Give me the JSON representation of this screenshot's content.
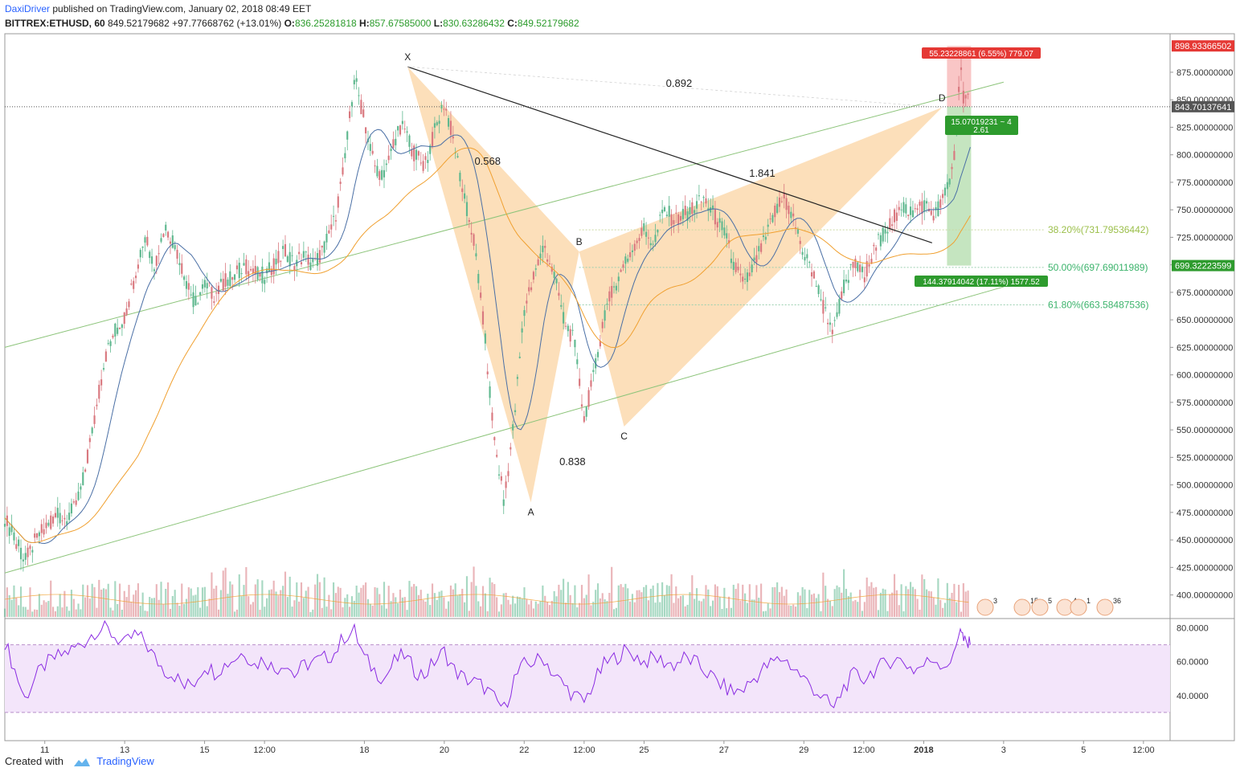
{
  "header": {
    "author": "DaxiDriver",
    "published_text": "published on TradingView.com, January 02, 2018 08:49 EET",
    "symbol": "BITTREX:ETHUSD, 60",
    "last": "849.52179682",
    "change": "+97.77668762 (+13.01%)",
    "open_label": "O:",
    "open": "836.25281818",
    "high_label": "H:",
    "high": "857.67585000",
    "low_label": "L:",
    "low": "830.63286432",
    "close_label": "C:",
    "close": "849.52179682"
  },
  "footer": {
    "created_with": "Created with",
    "brand": "TradingView"
  },
  "colors": {
    "up": "#5fb88f",
    "down": "#d9787f",
    "ma_fast": "#4a6fa5",
    "ma_slow": "#f0a030",
    "channel": "#8cc47a",
    "pattern_fill": "#fbd9ae",
    "rsi": "#8a2be2",
    "rsi_band": "#f3e5fa"
  },
  "chart_data": [
    {
      "type": "candlestick",
      "title": "BITTREX:ETHUSD, 60",
      "ylim": [
        380,
        910
      ],
      "y_ticks": [
        "875.00000000",
        "850.00000000",
        "825.00000000",
        "800.00000000",
        "775.00000000",
        "750.00000000",
        "725.00000000",
        "700.00000000",
        "675.00000000",
        "650.00000000",
        "625.00000000",
        "600.00000000",
        "575.00000000",
        "550.00000000",
        "525.00000000",
        "500.00000000",
        "475.00000000",
        "450.00000000",
        "425.00000000",
        "400.00000000"
      ],
      "y_tick_values": [
        875,
        850,
        825,
        800,
        775,
        750,
        725,
        700,
        675,
        650,
        625,
        600,
        575,
        550,
        525,
        500,
        475,
        450,
        425,
        400
      ],
      "x_ticks": [
        "11",
        "13",
        "15",
        "12:00",
        "18",
        "20",
        "22",
        "12:00",
        "25",
        "27",
        "29",
        "12:00",
        "2018",
        "3",
        "5",
        "12:00"
      ],
      "x_tick_hours": [
        24,
        72,
        120,
        156,
        216,
        264,
        312,
        348,
        384,
        432,
        480,
        516,
        552,
        600,
        648,
        684
      ],
      "price_points": [
        [
          0,
          470
        ],
        [
          6,
          450
        ],
        [
          12,
          430
        ],
        [
          18,
          448
        ],
        [
          24,
          462
        ],
        [
          30,
          472
        ],
        [
          36,
          470
        ],
        [
          42,
          478
        ],
        [
          48,
          510
        ],
        [
          54,
          560
        ],
        [
          60,
          615
        ],
        [
          66,
          640
        ],
        [
          72,
          652
        ],
        [
          78,
          690
        ],
        [
          84,
          728
        ],
        [
          90,
          700
        ],
        [
          96,
          735
        ],
        [
          102,
          720
        ],
        [
          108,
          690
        ],
        [
          114,
          665
        ],
        [
          120,
          682
        ],
        [
          126,
          672
        ],
        [
          132,
          685
        ],
        [
          138,
          690
        ],
        [
          144,
          700
        ],
        [
          150,
          692
        ],
        [
          156,
          690
        ],
        [
          162,
          700
        ],
        [
          168,
          712
        ],
        [
          174,
          702
        ],
        [
          180,
          708
        ],
        [
          186,
          700
        ],
        [
          192,
          716
        ],
        [
          198,
          740
        ],
        [
          204,
          790
        ],
        [
          210,
          872
        ],
        [
          216,
          830
        ],
        [
          222,
          790
        ],
        [
          228,
          780
        ],
        [
          234,
          815
        ],
        [
          240,
          825
        ],
        [
          246,
          800
        ],
        [
          252,
          790
        ],
        [
          258,
          820
        ],
        [
          264,
          848
        ],
        [
          270,
          810
        ],
        [
          276,
          760
        ],
        [
          282,
          720
        ],
        [
          288,
          640
        ],
        [
          294,
          540
        ],
        [
          300,
          484
        ],
        [
          306,
          560
        ],
        [
          312,
          660
        ],
        [
          318,
          690
        ],
        [
          324,
          718
        ],
        [
          330,
          690
        ],
        [
          336,
          650
        ],
        [
          342,
          630
        ],
        [
          348,
          560
        ],
        [
          354,
          600
        ],
        [
          360,
          655
        ],
        [
          366,
          680
        ],
        [
          372,
          700
        ],
        [
          378,
          718
        ],
        [
          384,
          732
        ],
        [
          390,
          720
        ],
        [
          396,
          752
        ],
        [
          402,
          740
        ],
        [
          408,
          745
        ],
        [
          414,
          752
        ],
        [
          420,
          760
        ],
        [
          426,
          745
        ],
        [
          432,
          730
        ],
        [
          438,
          700
        ],
        [
          444,
          680
        ],
        [
          450,
          700
        ],
        [
          456,
          720
        ],
        [
          462,
          745
        ],
        [
          468,
          760
        ],
        [
          474,
          740
        ],
        [
          480,
          710
        ],
        [
          486,
          690
        ],
        [
          492,
          660
        ],
        [
          498,
          640
        ],
        [
          504,
          680
        ],
        [
          510,
          700
        ],
        [
          516,
          690
        ],
        [
          522,
          712
        ],
        [
          528,
          730
        ],
        [
          534,
          742
        ],
        [
          540,
          752
        ],
        [
          546,
          748
        ],
        [
          552,
          755
        ],
        [
          558,
          745
        ],
        [
          564,
          760
        ],
        [
          570,
          790
        ],
        [
          574,
          880
        ],
        [
          576,
          852
        ],
        [
          578,
          855
        ],
        [
          580,
          849
        ]
      ],
      "series": [
        {
          "name": "ETHUSD",
          "values": "price_points"
        }
      ],
      "drawings": {
        "pattern_points": [
          {
            "label": "X",
            "hour": 242,
            "price": 880
          },
          {
            "label": "A",
            "hour": 316,
            "price": 484
          },
          {
            "label": "B",
            "hour": 345,
            "price": 712
          },
          {
            "label": "C",
            "hour": 372,
            "price": 553
          },
          {
            "label": "D",
            "hour": 563,
            "price": 843
          }
        ],
        "pattern_ratios": [
          {
            "text": "0.892",
            "hour": 405,
            "price": 862
          },
          {
            "text": "0.568",
            "hour": 290,
            "price": 791
          },
          {
            "text": "1.841",
            "hour": 455,
            "price": 780
          },
          {
            "text": "0.838",
            "hour": 341,
            "price": 518
          }
        ],
        "fib_levels": [
          {
            "text": "38.20%(731.79536442)",
            "price": 731.8
          },
          {
            "text": "50.00%(697.69011989)",
            "price": 697.69
          },
          {
            "text": "61.80%(663.58487536)",
            "price": 663.58
          }
        ],
        "price_tags": [
          {
            "text": "898.93366502",
            "price": 898.93,
            "color": "#e53935"
          },
          {
            "text": "843.70137641",
            "price": 843.7,
            "color": "#555555"
          },
          {
            "text": "699.32223599",
            "price": 699.32,
            "color": "#2e9b2e"
          }
        ],
        "position_labels": {
          "target": "55.23228861 (6.55%) 779.07",
          "entry": "15.07019231 ~ 4",
          "entry2": "2.61",
          "stop": "144.37914042 (17.11%) 1577.52"
        },
        "event_icons": [
          "3",
          "15",
          "5",
          "4",
          "1",
          "36"
        ]
      }
    },
    {
      "type": "line",
      "title": "RSI",
      "ylim": [
        20,
        85
      ],
      "y_ticks": [
        "80.0000",
        "60.0000",
        "40.0000"
      ],
      "y_tick_values": [
        80,
        60,
        40
      ],
      "bands": [
        30,
        70
      ],
      "values": [
        [
          0,
          72
        ],
        [
          6,
          55
        ],
        [
          12,
          38
        ],
        [
          18,
          50
        ],
        [
          24,
          58
        ],
        [
          30,
          62
        ],
        [
          36,
          65
        ],
        [
          42,
          68
        ],
        [
          48,
          72
        ],
        [
          54,
          78
        ],
        [
          60,
          80
        ],
        [
          66,
          75
        ],
        [
          72,
          70
        ],
        [
          78,
          76
        ],
        [
          84,
          72
        ],
        [
          90,
          62
        ],
        [
          96,
          55
        ],
        [
          102,
          52
        ],
        [
          108,
          45
        ],
        [
          114,
          48
        ],
        [
          120,
          58
        ],
        [
          126,
          54
        ],
        [
          132,
          58
        ],
        [
          138,
          62
        ],
        [
          144,
          66
        ],
        [
          150,
          58
        ],
        [
          156,
          62
        ],
        [
          162,
          55
        ],
        [
          168,
          60
        ],
        [
          174,
          52
        ],
        [
          180,
          58
        ],
        [
          186,
          60
        ],
        [
          192,
          62
        ],
        [
          198,
          65
        ],
        [
          204,
          75
        ],
        [
          210,
          78
        ],
        [
          216,
          62
        ],
        [
          222,
          55
        ],
        [
          228,
          50
        ],
        [
          234,
          60
        ],
        [
          240,
          64
        ],
        [
          246,
          55
        ],
        [
          252,
          52
        ],
        [
          258,
          60
        ],
        [
          264,
          66
        ],
        [
          270,
          55
        ],
        [
          276,
          50
        ],
        [
          282,
          48
        ],
        [
          288,
          45
        ],
        [
          294,
          38
        ],
        [
          300,
          32
        ],
        [
          306,
          50
        ],
        [
          312,
          58
        ],
        [
          318,
          60
        ],
        [
          324,
          62
        ],
        [
          330,
          52
        ],
        [
          336,
          46
        ],
        [
          342,
          40
        ],
        [
          348,
          36
        ],
        [
          354,
          48
        ],
        [
          360,
          58
        ],
        [
          366,
          62
        ],
        [
          372,
          66
        ],
        [
          378,
          64
        ],
        [
          384,
          60
        ],
        [
          390,
          62
        ],
        [
          396,
          60
        ],
        [
          402,
          58
        ],
        [
          408,
          62
        ],
        [
          414,
          60
        ],
        [
          420,
          55
        ],
        [
          426,
          50
        ],
        [
          432,
          45
        ],
        [
          438,
          42
        ],
        [
          444,
          44
        ],
        [
          450,
          50
        ],
        [
          456,
          56
        ],
        [
          462,
          60
        ],
        [
          468,
          62
        ],
        [
          474,
          56
        ],
        [
          480,
          50
        ],
        [
          486,
          44
        ],
        [
          492,
          38
        ],
        [
          498,
          32
        ],
        [
          504,
          45
        ],
        [
          510,
          52
        ],
        [
          516,
          50
        ],
        [
          522,
          55
        ],
        [
          528,
          58
        ],
        [
          534,
          62
        ],
        [
          540,
          60
        ],
        [
          546,
          55
        ],
        [
          552,
          58
        ],
        [
          558,
          62
        ],
        [
          564,
          58
        ],
        [
          570,
          62
        ],
        [
          574,
          82
        ],
        [
          576,
          72
        ],
        [
          578,
          70
        ],
        [
          580,
          70
        ]
      ]
    }
  ]
}
